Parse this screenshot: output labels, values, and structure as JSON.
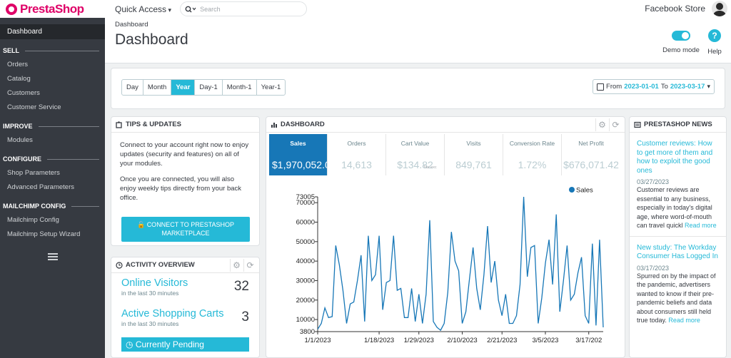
{
  "brand": {
    "name": "PrestaShop"
  },
  "sidebar": {
    "active": "Dashboard",
    "sections": [
      {
        "title": "SELL",
        "items": [
          "Orders",
          "Catalog",
          "Customers",
          "Customer Service"
        ]
      },
      {
        "title": "IMPROVE",
        "items": [
          "Modules"
        ]
      },
      {
        "title": "CONFIGURE",
        "items": [
          "Shop Parameters",
          "Advanced Parameters"
        ]
      },
      {
        "title": "MAILCHIMP CONFIG",
        "items": [
          "Mailchimp Config",
          "Mailchimp Setup Wizard"
        ]
      }
    ]
  },
  "topbar": {
    "quick_access": "Quick Access",
    "search_placeholder": "Search",
    "store": "Facebook Store"
  },
  "header": {
    "breadcrumb": "Dashboard",
    "title": "Dashboard",
    "demo_label": "Demo mode",
    "help_label": "Help"
  },
  "filters": {
    "ranges": [
      "Day",
      "Month",
      "Year",
      "Day-1",
      "Month-1",
      "Year-1"
    ],
    "active_range": "Year",
    "from_label": "From",
    "from": "2023-01-01",
    "to_label": "To",
    "to": "2023-03-17"
  },
  "tips": {
    "title": "TIPS & UPDATES",
    "p1": "Connect to your account right now to enjoy updates (security and features) on all of your modules.",
    "p2": "Once you are connected, you will also enjoy weekly tips directly from your back office.",
    "button": "CONNECT TO PRESTASHOP MARKETPLACE"
  },
  "activity": {
    "title": "ACTIVITY OVERVIEW",
    "rows": [
      {
        "label": "Online Visitors",
        "sub": "in the last 30 minutes",
        "value": "32"
      },
      {
        "label": "Active Shopping Carts",
        "sub": "in the last 30 minutes",
        "value": "3"
      }
    ],
    "pending": "Currently Pending"
  },
  "dashboard": {
    "title": "DASHBOARD",
    "kpis": [
      {
        "label": "Sales",
        "value": "$1,970,052.0"
      },
      {
        "label": "Orders",
        "value": "14,613"
      },
      {
        "label": "Cart Value",
        "value": "$134.82",
        "note": "Tax exc"
      },
      {
        "label": "Visits",
        "value": "849,761"
      },
      {
        "label": "Conversion Rate",
        "value": "1.72%"
      },
      {
        "label": "Net Profit",
        "value": "$676,071.42"
      }
    ]
  },
  "news": {
    "title": "PRESTASHOP NEWS",
    "items": [
      {
        "title": "Customer reviews: How to get more of them and how to exploit the good ones",
        "date": "03/27/2023",
        "body": "Customer reviews are essential to any business, especially in today's digital age, where word-of-mouth can travel quickl",
        "more": "Read more"
      },
      {
        "title": "New study: The Workday Consumer Has Logged In",
        "date": "03/17/2023",
        "body": "Spurred on by the impact of the pandemic, advertisers wanted to know if their pre-pandemic beliefs and data about consumers still held true today.",
        "more": "Read more"
      }
    ]
  },
  "colors": {
    "accent": "#25b9d7",
    "brand": "#df0067",
    "sidebar": "#363a41",
    "series": "#1777b7"
  },
  "chart_data": {
    "type": "line",
    "title": "",
    "xlabel": "",
    "ylabel": "",
    "legend": "top-right",
    "series": [
      {
        "name": "Sales",
        "color": "#1777b7"
      }
    ],
    "ylim": [
      3800,
      73005
    ],
    "yticks": [
      "73005",
      "70000",
      "60000",
      "50000",
      "40000",
      "30000",
      "20000",
      "10000",
      "3800"
    ],
    "ytick_values": [
      73005,
      70000,
      60000,
      50000,
      40000,
      30000,
      20000,
      10000,
      3800
    ],
    "xticks": [
      "1/1/2023",
      "1/18/2023",
      "1/29/2023",
      "2/10/2023",
      "2/21/2023",
      "3/5/2023",
      "3/17/202"
    ],
    "xtick_days": [
      0,
      17,
      28,
      40,
      51,
      63,
      75
    ],
    "x_start": "2023-01-01",
    "y": [
      5000,
      8000,
      16000,
      11000,
      11500,
      48000,
      38000,
      25000,
      8000,
      18000,
      19000,
      30000,
      43000,
      9000,
      53000,
      30000,
      33000,
      53000,
      15000,
      29000,
      30000,
      53000,
      25000,
      26000,
      11000,
      11000,
      26000,
      9000,
      23000,
      8000,
      23000,
      61000,
      9000,
      6000,
      4500,
      8000,
      24000,
      55000,
      40000,
      35000,
      8000,
      14000,
      31000,
      47000,
      26000,
      15000,
      33000,
      58000,
      29000,
      40000,
      20000,
      12000,
      23000,
      8000,
      8000,
      12000,
      28000,
      73000,
      32000,
      47000,
      48000,
      8000,
      21000,
      39000,
      51000,
      28000,
      64000,
      14000,
      30000,
      48000,
      20000,
      23000,
      34000,
      42000,
      12000,
      8000,
      49000,
      7000,
      51000,
      6000
    ]
  }
}
